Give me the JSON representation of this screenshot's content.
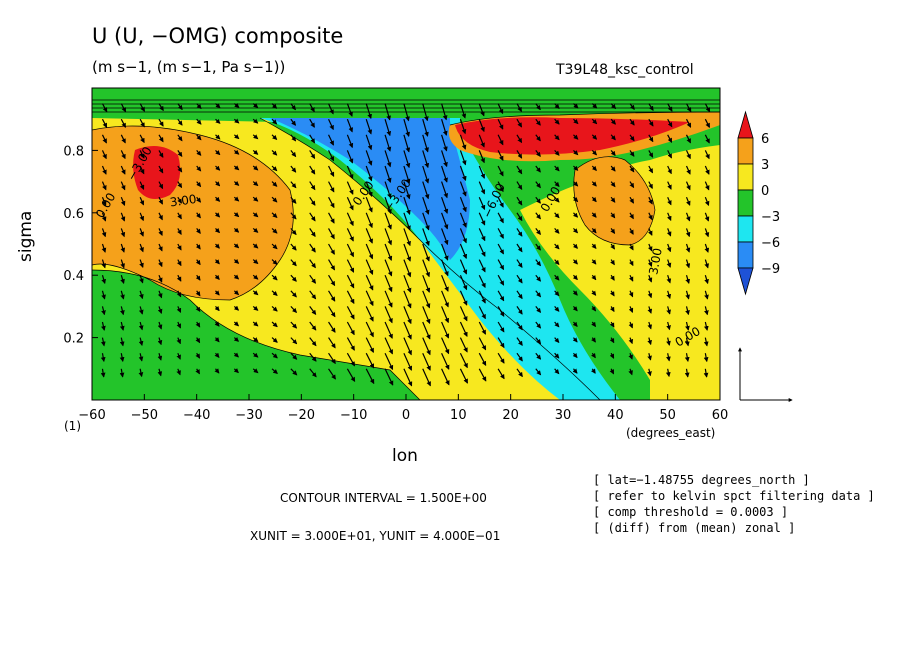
{
  "title": "U (U, −OMG) composite",
  "subtitle": "(m s−1, (m s−1, Pa s−1))",
  "experiment": "T39L48_ksc_control",
  "footer": {
    "contour_interval": "CONTOUR INTERVAL = 1.500E+00",
    "units": "XUNIT = 3.000E+01, YUNIT = 4.000E−01"
  },
  "notes": [
    "[ lat=−1.48755 degrees_north ]",
    "[ refer to kelvin spct filtering data ]",
    "[ comp threshold = 0.0003 ]",
    "[ (diff) from (mean) zonal ]"
  ],
  "chart_data": {
    "type": "contour-vector",
    "xlabel": "lon",
    "xunit": "(degrees_east)",
    "ylabel": "sigma",
    "x_range": [
      -60,
      60
    ],
    "y_range": [
      1.0,
      0.0
    ],
    "corner_label": "(1)",
    "x_ticks": [
      "−60",
      "−50",
      "−40",
      "−30",
      "−20",
      "−10",
      "0",
      "10",
      "20",
      "30",
      "40",
      "50",
      "60"
    ],
    "y_ticks": [
      "0.2",
      "0.4",
      "0.6",
      "0.8"
    ],
    "contour_interval": 1.5,
    "colorbar": {
      "levels": [
        "6",
        "3",
        "0",
        "−3",
        "−6",
        "−9"
      ],
      "colors": [
        "#e8151b",
        "#f5a11b",
        "#f7e81f",
        "#23c42a",
        "#1ee6f0",
        "#2a8cf5",
        "#1e52d6"
      ]
    },
    "contour_labels": [
      "3.00",
      "0.00",
      "−3.00",
      "0.00",
      "−3.00",
      "−6.00",
      "0.00",
      "3.00",
      "0.00"
    ],
    "reference_vector": "XUNIT = 30, YUNIT = 0.4"
  }
}
